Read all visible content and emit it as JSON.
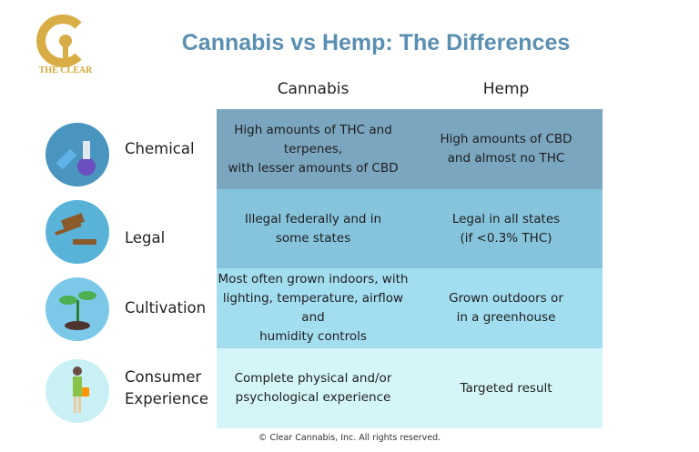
{
  "logo": "THE CLEAR",
  "title": "Cannabis vs Hemp: The Differences",
  "table": {
    "columns": [
      "Cannabis",
      "Hemp"
    ],
    "rows": [
      {
        "label": [
          "Chemical"
        ],
        "cells": [
          [
            "High amounts of THC and terpenes,",
            "with lesser amounts of CBD"
          ],
          [
            "High amounts of CBD",
            "and almost no THC"
          ]
        ]
      },
      {
        "label": [
          "Legal"
        ],
        "cells": [
          [
            "Illegal federally and in",
            "some states"
          ],
          [
            "Legal in all states",
            "(if <0.3% THC)"
          ]
        ]
      },
      {
        "label": [
          "Cultivation"
        ],
        "cells": [
          [
            "Most often grown indoors, with",
            "lighting, temperature, airflow and",
            "humidity controls"
          ],
          [
            "Grown outdoors or",
            "in a greenhouse"
          ]
        ]
      },
      {
        "label": [
          "Consumer",
          "Experience"
        ],
        "cells": [
          [
            "Complete physical and/or",
            "psychological experience"
          ],
          [
            "Targeted result"
          ]
        ]
      }
    ]
  },
  "footer": "© Clear Cannabis, Inc. All rights reserved."
}
